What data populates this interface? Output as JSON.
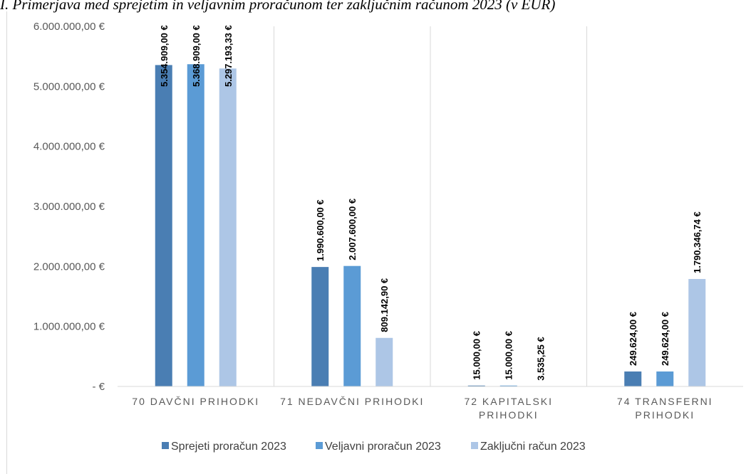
{
  "caption": "I. Primerjava med sprejetim in veljavnim proračunom ter zaključnim računom 2023 (v EUR)",
  "chart_data": {
    "type": "bar",
    "categories": [
      [
        "70 DAVČNI PRIHODKI"
      ],
      [
        "71 NEDAVČNI PRIHODKI"
      ],
      [
        "72 KAPITALSKI",
        "PRIHODKI"
      ],
      [
        "74 TRANSFERNI",
        "PRIHODKI"
      ]
    ],
    "series": [
      {
        "name": "Sprejeti proračun 2023",
        "color": "#4a7eb3",
        "values": [
          5354909.0,
          1990600.0,
          15000.0,
          249624.0
        ],
        "labels": [
          "5.354.909,00 €",
          "1.990.600,00 €",
          "15.000,00 €",
          "249.624,00 €"
        ]
      },
      {
        "name": "Veljavni proračun 2023",
        "color": "#5b9bd5",
        "values": [
          5368909.0,
          2007600.0,
          15000.0,
          249624.0
        ],
        "labels": [
          "5.368.909,00 €",
          "2.007.600,00 €",
          "15.000,00 €",
          "249.624,00 €"
        ]
      },
      {
        "name": "Zaključni račun 2023",
        "color": "#adc6e6",
        "values": [
          5297193.33,
          809142.9,
          3535.25,
          1790346.74
        ],
        "labels": [
          "5.297.193,33 €",
          "809.142,90 €",
          "3.535,25 €",
          "1.790.346,74 €"
        ]
      }
    ],
    "yticks": [
      {
        "value": 6000000,
        "label": "6.000.000,00 €"
      },
      {
        "value": 5000000,
        "label": "5.000.000,00 €"
      },
      {
        "value": 4000000,
        "label": "4.000.000,00 €"
      },
      {
        "value": 3000000,
        "label": "3.000.000,00 €"
      },
      {
        "value": 2000000,
        "label": "2.000.000,00 €"
      },
      {
        "value": 1000000,
        "label": "1.000.000,00 €"
      },
      {
        "value": 0,
        "label": "-   €"
      }
    ],
    "ylim": [
      0,
      6000000
    ],
    "grid": false,
    "category_separators": true,
    "legend_position": "bottom"
  }
}
